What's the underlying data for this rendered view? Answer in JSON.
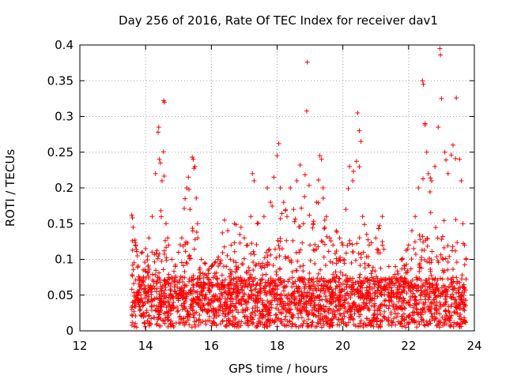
{
  "chart_data": {
    "type": "scatter",
    "title": "Day 256 of 2016, Rate Of TEC Index for receiver dav1",
    "xlabel": "GPS time / hours",
    "ylabel": "ROTI / TECUs",
    "xlim": [
      12,
      24
    ],
    "ylim": [
      0,
      0.4
    ],
    "xticks": [
      "12",
      "14",
      "16",
      "18",
      "20",
      "22",
      "24"
    ],
    "yticks": [
      "0",
      "0.05",
      "0.1",
      "0.15",
      "0.2",
      "0.25",
      "0.3",
      "0.35",
      "0.4"
    ],
    "grid": true,
    "marker": "+",
    "color": "#ff0000",
    "series": [
      {
        "name": "dav1",
        "points": [
          [
            13.58,
            0.162
          ],
          [
            13.6,
            0.158
          ],
          [
            13.62,
            0.145
          ],
          [
            13.7,
            0.12
          ],
          [
            13.75,
            0.105
          ],
          [
            13.9,
            0.11
          ],
          [
            14.0,
            0.115
          ],
          [
            14.1,
            0.13
          ],
          [
            14.2,
            0.16
          ],
          [
            14.3,
            0.22
          ],
          [
            14.38,
            0.278
          ],
          [
            14.4,
            0.285
          ],
          [
            14.42,
            0.24
          ],
          [
            14.45,
            0.235
          ],
          [
            14.5,
            0.21
          ],
          [
            14.55,
            0.322
          ],
          [
            14.57,
            0.32
          ],
          [
            14.62,
            0.15
          ],
          [
            14.7,
            0.12
          ],
          [
            14.8,
            0.1
          ],
          [
            14.9,
            0.09
          ],
          [
            15.0,
            0.11
          ],
          [
            15.1,
            0.13
          ],
          [
            15.2,
            0.185
          ],
          [
            15.25,
            0.2
          ],
          [
            15.3,
            0.215
          ],
          [
            15.35,
            0.17
          ],
          [
            15.42,
            0.243
          ],
          [
            15.45,
            0.24
          ],
          [
            15.5,
            0.23
          ],
          [
            15.58,
            0.15
          ],
          [
            15.7,
            0.1
          ],
          [
            15.8,
            0.095
          ],
          [
            15.9,
            0.085
          ],
          [
            16.0,
            0.09
          ],
          [
            16.2,
            0.1
          ],
          [
            16.4,
            0.155
          ],
          [
            16.5,
            0.14
          ],
          [
            16.6,
            0.12
          ],
          [
            16.7,
            0.15
          ],
          [
            16.9,
            0.145
          ],
          [
            17.0,
            0.13
          ],
          [
            17.1,
            0.12
          ],
          [
            17.2,
            0.16
          ],
          [
            17.25,
            0.22
          ],
          [
            17.3,
            0.21
          ],
          [
            17.4,
            0.15
          ],
          [
            17.6,
            0.16
          ],
          [
            17.7,
            0.2
          ],
          [
            17.8,
            0.18
          ],
          [
            17.9,
            0.215
          ],
          [
            18.0,
            0.245
          ],
          [
            18.05,
            0.262
          ],
          [
            18.1,
            0.2
          ],
          [
            18.2,
            0.18
          ],
          [
            18.3,
            0.16
          ],
          [
            18.4,
            0.2
          ],
          [
            18.5,
            0.17
          ],
          [
            18.6,
            0.21
          ],
          [
            18.7,
            0.232
          ],
          [
            18.8,
            0.15
          ],
          [
            18.92,
            0.376
          ],
          [
            19.0,
            0.12
          ],
          [
            19.1,
            0.15
          ],
          [
            19.2,
            0.18
          ],
          [
            19.3,
            0.245
          ],
          [
            19.35,
            0.24
          ],
          [
            19.4,
            0.2
          ],
          [
            19.5,
            0.16
          ],
          [
            19.6,
            0.13
          ],
          [
            19.7,
            0.12
          ],
          [
            19.8,
            0.14
          ],
          [
            19.9,
            0.13
          ],
          [
            20.0,
            0.12
          ],
          [
            20.2,
            0.23
          ],
          [
            20.3,
            0.21
          ],
          [
            20.45,
            0.305
          ],
          [
            20.5,
            0.28
          ],
          [
            20.55,
            0.265
          ],
          [
            20.6,
            0.16
          ],
          [
            20.8,
            0.12
          ],
          [
            21.0,
            0.13
          ],
          [
            21.2,
            0.16
          ],
          [
            21.4,
            0.09
          ],
          [
            21.6,
            0.09
          ],
          [
            21.8,
            0.1
          ],
          [
            22.0,
            0.12
          ],
          [
            22.1,
            0.14
          ],
          [
            22.2,
            0.16
          ],
          [
            22.3,
            0.2
          ],
          [
            22.42,
            0.35
          ],
          [
            22.45,
            0.345
          ],
          [
            22.5,
            0.29
          ],
          [
            22.55,
            0.25
          ],
          [
            22.6,
            0.22
          ],
          [
            22.7,
            0.21
          ],
          [
            22.8,
            0.23
          ],
          [
            22.9,
            0.285
          ],
          [
            22.95,
            0.395
          ],
          [
            22.97,
            0.386
          ],
          [
            23.0,
            0.325
          ],
          [
            23.1,
            0.25
          ],
          [
            23.2,
            0.22
          ],
          [
            23.35,
            0.26
          ],
          [
            23.45,
            0.326
          ],
          [
            23.55,
            0.24
          ],
          [
            23.6,
            0.21
          ],
          [
            23.65,
            0.15
          ],
          [
            23.7,
            0.12
          ],
          [
            23.75,
            0.1
          ]
        ]
      }
    ]
  }
}
